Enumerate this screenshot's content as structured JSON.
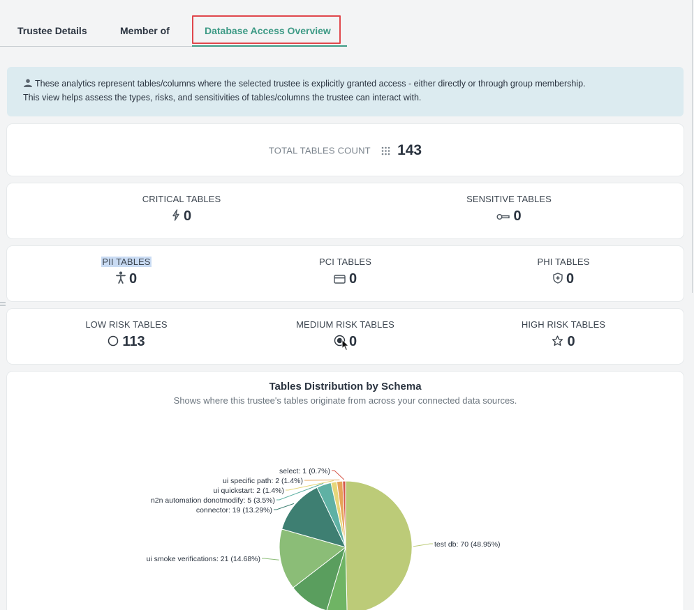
{
  "tabs": [
    {
      "label": "Trustee Details"
    },
    {
      "label": "Member of"
    },
    {
      "label": "Database Access Overview"
    }
  ],
  "banner": {
    "line1": "These analytics represent tables/columns where the selected trustee is explicitly granted access - either directly or through group membership.",
    "line2": "This view helps assess the types, risks, and sensitivities of tables/columns the trustee can interact with."
  },
  "total": {
    "label": "TOTAL TABLES COUNT",
    "value": "143",
    "icon": "grid-icon"
  },
  "stats": {
    "critical": {
      "label": "CRITICAL TABLES",
      "value": "0",
      "icon": "bolt-icon"
    },
    "sensitive": {
      "label": "SENSITIVE TABLES",
      "value": "0",
      "icon": "key-icon"
    },
    "pii": {
      "label": "PII TABLES",
      "value": "0",
      "icon": "person-icon"
    },
    "pci": {
      "label": "PCI TABLES",
      "value": "0",
      "icon": "credit-card-icon"
    },
    "phi": {
      "label": "PHI TABLES",
      "value": "0",
      "icon": "shield-icon"
    },
    "low": {
      "label": "LOW RISK TABLES",
      "value": "113",
      "icon": "circle-icon"
    },
    "medium": {
      "label": "MEDIUM RISK TABLES",
      "value": "0",
      "icon": "target-icon"
    },
    "high": {
      "label": "HIGH RISK TABLES",
      "value": "0",
      "icon": "star-icon"
    }
  },
  "chart": {
    "title": "Tables Distribution by Schema",
    "subtitle": "Shows where this trustee's tables originate from across your connected data sources."
  },
  "chart_data": {
    "type": "pie",
    "title": "Tables Distribution by Schema",
    "slices": [
      {
        "label": "test db: 70 (48.95%)",
        "name": "test db",
        "value": 70,
        "percent": 48.95,
        "color": "#bccb78"
      },
      {
        "label": "",
        "name": "",
        "value": 7,
        "percent": 4.9,
        "color": "#6fb464"
      },
      {
        "label": "",
        "name": "",
        "value": 14,
        "percent": 9.79,
        "color": "#5a9e5e"
      },
      {
        "label": "ui smoke verifications: 21 (14.68%)",
        "name": "ui smoke verifications",
        "value": 21,
        "percent": 14.68,
        "color": "#8bbd77"
      },
      {
        "label": "connector: 19 (13.29%)",
        "name": "connector",
        "value": 19,
        "percent": 13.29,
        "color": "#3e7f72"
      },
      {
        "label": "n2n automation donotmodify: 5 (3.5%)",
        "name": "n2n automation donotmodify",
        "value": 5,
        "percent": 3.5,
        "color": "#5fb1a4"
      },
      {
        "label": "ui quickstart: 2 (1.4%)",
        "name": "ui quickstart",
        "value": 2,
        "percent": 1.4,
        "color": "#e6d67a"
      },
      {
        "label": "ui specific path: 2 (1.4%)",
        "name": "ui specific path",
        "value": 2,
        "percent": 1.4,
        "color": "#e7a45a"
      },
      {
        "label": "select: 1 (0.7%)",
        "name": "select",
        "value": 1,
        "percent": 0.7,
        "color": "#d6574a"
      }
    ]
  }
}
